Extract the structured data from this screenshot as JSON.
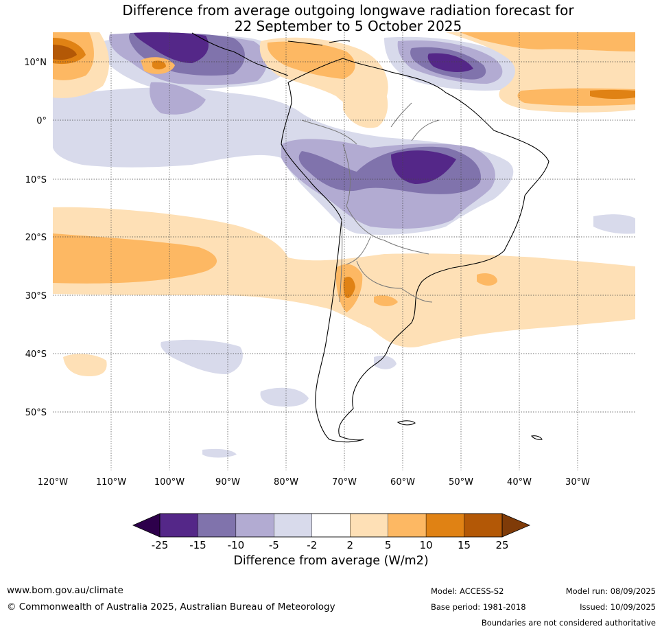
{
  "title_line1": "Difference from average outgoing longwave radiation forecast for",
  "title_line2": "22 September to 5 October 2025",
  "lat_labels": [
    "10°N",
    "0°",
    "10°S",
    "20°S",
    "30°S",
    "40°S",
    "50°S"
  ],
  "lon_labels": [
    "120°W",
    "110°W",
    "100°W",
    "90°W",
    "80°W",
    "70°W",
    "60°W",
    "50°W",
    "40°W",
    "30°W"
  ],
  "colorbar": {
    "ticks": [
      "-25",
      "-15",
      "-10",
      "-5",
      "-2",
      "2",
      "5",
      "10",
      "15",
      "25"
    ],
    "colors": [
      "#2d004b",
      "#542788",
      "#8073ac",
      "#b2abd2",
      "#d8daeb",
      "#ffffff",
      "#fee0b6",
      "#fdb863",
      "#e08214",
      "#b35806",
      "#7f3b08"
    ],
    "label": "Difference from average (W/m2)"
  },
  "footer": {
    "url": "www.bom.gov.au/climate",
    "copyright": "© Commonwealth of Australia 2025, Australian Bureau of Meteorology",
    "model": "Model: ACCESS-S2",
    "base_period": "Base period: 1981-2018",
    "model_run": "Model run: 08/09/2025",
    "issued": "Issued: 10/09/2025",
    "disclaimer": "Boundaries are not considered authoritative"
  }
}
